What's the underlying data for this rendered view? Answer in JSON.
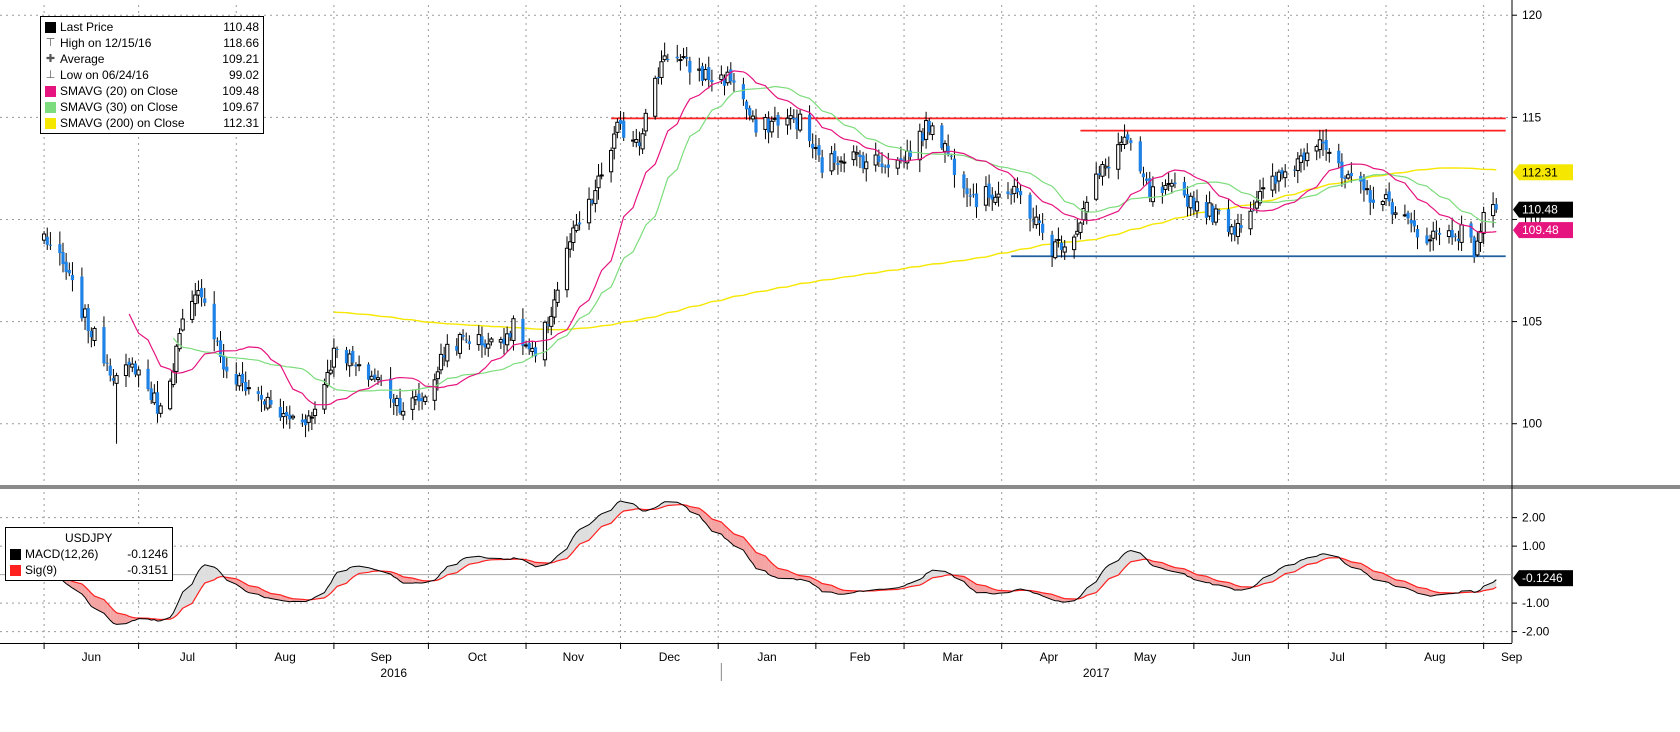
{
  "chart_data": [
    {
      "type": "candlestick",
      "ylim": [
        97,
        120.5
      ],
      "yticks": [
        100,
        105,
        110,
        115,
        120
      ],
      "xticks": [
        {
          "label": "Jun",
          "date": "2016-06-01"
        },
        {
          "label": "Jul",
          "date": "2016-07-01"
        },
        {
          "label": "Aug",
          "date": "2016-08-01"
        },
        {
          "label": "Sep",
          "date": "2016-09-01"
        },
        {
          "label": "Oct",
          "date": "2016-10-01"
        },
        {
          "label": "Nov",
          "date": "2016-11-01"
        },
        {
          "label": "Dec",
          "date": "2016-12-01"
        },
        {
          "label": "Jan",
          "date": "2017-01-01"
        },
        {
          "label": "Feb",
          "date": "2017-02-01"
        },
        {
          "label": "Mar",
          "date": "2017-03-01"
        },
        {
          "label": "Apr",
          "date": "2017-04-01"
        },
        {
          "label": "May",
          "date": "2017-05-01"
        },
        {
          "label": "Jun",
          "date": "2017-06-01"
        },
        {
          "label": "Jul",
          "date": "2017-07-01"
        },
        {
          "label": "Aug",
          "date": "2017-08-01"
        },
        {
          "label": "Sep",
          "date": "2017-09-01"
        }
      ],
      "year_labels": [
        {
          "label": "2016",
          "date": "2016-09-20"
        },
        {
          "label": "2017",
          "date": "2017-05-01"
        }
      ],
      "grid": true,
      "legend": {
        "position": "top-left",
        "items": [
          {
            "label": "Last Price",
            "value": "110.48",
            "color": "#000000",
            "kind": "box"
          },
          {
            "label": "High on 12/15/16",
            "value": "118.66",
            "kind": "high"
          },
          {
            "label": "Average",
            "value": "109.21",
            "kind": "avg"
          },
          {
            "label": "Low on 06/24/16",
            "value": "99.02",
            "kind": "low"
          },
          {
            "label": "SMAVG (20) on Close",
            "value": "109.48",
            "color": "#e6147f",
            "kind": "box"
          },
          {
            "label": "SMAVG (30) on Close",
            "value": "109.67",
            "color": "#7ddc7d",
            "kind": "box"
          },
          {
            "label": "SMAVG (200) on Close",
            "value": "112.31",
            "color": "#f5e700",
            "kind": "box"
          }
        ]
      },
      "price_anchors": [
        [
          "2016-06-01",
          109.2
        ],
        [
          "2016-06-08",
          107.4
        ],
        [
          "2016-06-15",
          104.8
        ],
        [
          "2016-06-24",
          102.2
        ],
        [
          "2016-06-30",
          102.8
        ],
        [
          "2016-07-08",
          100.6
        ],
        [
          "2016-07-15",
          104.8
        ],
        [
          "2016-07-21",
          106.6
        ],
        [
          "2016-07-29",
          102.3
        ],
        [
          "2016-08-05",
          101.8
        ],
        [
          "2016-08-16",
          100.3
        ],
        [
          "2016-08-25",
          100.3
        ],
        [
          "2016-09-02",
          103.9
        ],
        [
          "2016-09-09",
          102.5
        ],
        [
          "2016-09-14",
          102.3
        ],
        [
          "2016-09-23",
          100.8
        ],
        [
          "2016-09-30",
          101.3
        ],
        [
          "2016-10-07",
          103.8
        ],
        [
          "2016-10-14",
          104.2
        ],
        [
          "2016-10-21",
          103.9
        ],
        [
          "2016-10-28",
          104.7
        ],
        [
          "2016-11-04",
          103.1
        ],
        [
          "2016-11-09",
          105.5
        ],
        [
          "2016-11-15",
          108.9
        ],
        [
          "2016-11-22",
          110.9
        ],
        [
          "2016-11-30",
          114.4
        ],
        [
          "2016-12-07",
          114.0
        ],
        [
          "2016-12-15",
          118.2
        ],
        [
          "2016-12-22",
          117.5
        ],
        [
          "2016-12-30",
          116.9
        ],
        [
          "2017-01-06",
          116.9
        ],
        [
          "2017-01-13",
          114.3
        ],
        [
          "2017-01-20",
          114.9
        ],
        [
          "2017-01-27",
          114.8
        ],
        [
          "2017-02-03",
          112.6
        ],
        [
          "2017-02-10",
          113.2
        ],
        [
          "2017-02-17",
          112.9
        ],
        [
          "2017-02-28",
          112.8
        ],
        [
          "2017-03-06",
          114.0
        ],
        [
          "2017-03-10",
          114.8
        ],
        [
          "2017-03-17",
          112.6
        ],
        [
          "2017-03-24",
          111.0
        ],
        [
          "2017-03-31",
          111.4
        ],
        [
          "2017-04-07",
          111.1
        ],
        [
          "2017-04-17",
          108.6
        ],
        [
          "2017-04-24",
          109.3
        ],
        [
          "2017-05-01",
          111.9
        ],
        [
          "2017-05-10",
          114.0
        ],
        [
          "2017-05-18",
          111.2
        ],
        [
          "2017-05-26",
          111.4
        ],
        [
          "2017-06-05",
          110.5
        ],
        [
          "2017-06-14",
          109.6
        ],
        [
          "2017-06-23",
          111.3
        ],
        [
          "2017-07-04",
          112.9
        ],
        [
          "2017-07-11",
          114.2
        ],
        [
          "2017-07-18",
          112.0
        ],
        [
          "2017-07-27",
          111.2
        ],
        [
          "2017-08-04",
          110.6
        ],
        [
          "2017-08-11",
          109.2
        ],
        [
          "2017-08-18",
          109.3
        ],
        [
          "2017-08-25",
          109.4
        ],
        [
          "2017-08-29",
          108.5
        ],
        [
          "2017-09-01",
          110.1
        ],
        [
          "2017-09-05",
          110.48
        ]
      ],
      "price_extremes": [
        {
          "date": "2016-06-24",
          "low": 99.02
        },
        {
          "date": "2016-12-15",
          "high": 118.66
        }
      ],
      "horizontal_lines": [
        {
          "y": 114.95,
          "color": "#ff2020",
          "x_start": "2016-11-28",
          "x_end": "2017-09-08"
        },
        {
          "y": 114.35,
          "color": "#ff2020",
          "x_start": "2017-04-26",
          "x_end": "2017-09-08"
        },
        {
          "y": 108.2,
          "color": "#1f5f9f",
          "x_start": "2017-04-04",
          "x_end": "2017-09-08"
        }
      ],
      "sma_20_color": "#e6147f",
      "sma_30_color": "#7ddc7d",
      "sma_200_color": "#f5e700",
      "sma_200_start": "2016-09-01",
      "value_tags": [
        {
          "text": "112.31",
          "value": 112.31,
          "bg": "#f5e700",
          "fg": "#000000"
        },
        {
          "text": "110.48",
          "value": 110.48,
          "bg": "#000000",
          "fg": "#ffffff"
        },
        {
          "text": "109.48",
          "value": 109.48,
          "bg": "#e6147f",
          "fg": "#ffffff"
        }
      ],
      "up_color": "#000000",
      "down_color": "#1e82e6"
    },
    {
      "type": "line",
      "title": "USDJPY",
      "ylim": [
        -2.4,
        2.9
      ],
      "yticks": [
        {
          "label": "2.00",
          "value": 2
        },
        {
          "label": "1.00",
          "value": 1
        },
        {
          "label": "-1.00",
          "value": -1
        },
        {
          "label": "-2.00",
          "value": -2
        }
      ],
      "zero_line": true,
      "series": [
        {
          "name": "MACD(12,26)",
          "value": "-0.1246",
          "color": "#000000"
        },
        {
          "name": "Sig(9)",
          "value": "-0.3151",
          "color": "#ff2020"
        }
      ],
      "value_tags": [
        {
          "text": "-0.1246",
          "value": -0.1246,
          "bg": "#000000",
          "fg": "#ffffff"
        }
      ],
      "bull_fill": "#dedede",
      "bear_fill": "#f5a4a4"
    }
  ]
}
